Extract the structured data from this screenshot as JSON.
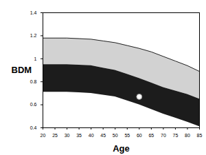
{
  "chart_data": {
    "type": "area",
    "x_label": "Age",
    "y_label": "BDM",
    "x": [
      20,
      25,
      30,
      35,
      40,
      45,
      50,
      55,
      60,
      65,
      70,
      75,
      80,
      85
    ],
    "bands": [
      {
        "color": "#d2d2d2",
        "upper": [
          1.18,
          1.18,
          1.18,
          1.175,
          1.17,
          1.155,
          1.14,
          1.115,
          1.09,
          1.06,
          1.02,
          0.98,
          0.94,
          0.89
        ],
        "lower": [
          0.95,
          0.95,
          0.95,
          0.945,
          0.94,
          0.92,
          0.9,
          0.865,
          0.83,
          0.79,
          0.75,
          0.72,
          0.69,
          0.65
        ]
      },
      {
        "color": "#1c1c1c",
        "upper": [
          0.95,
          0.95,
          0.95,
          0.945,
          0.94,
          0.92,
          0.9,
          0.865,
          0.83,
          0.79,
          0.75,
          0.72,
          0.69,
          0.65
        ],
        "lower": [
          0.71,
          0.71,
          0.71,
          0.705,
          0.7,
          0.685,
          0.67,
          0.635,
          0.6,
          0.56,
          0.52,
          0.485,
          0.45,
          0.41
        ]
      }
    ],
    "points": [
      {
        "x": 60,
        "y": 0.67,
        "color": "#ffffff"
      }
    ],
    "xlim": [
      20,
      85
    ],
    "xticks": [
      20,
      25,
      30,
      35,
      40,
      45,
      50,
      55,
      60,
      65,
      70,
      75,
      80,
      85
    ],
    "ylim": [
      0.4,
      1.4
    ],
    "yticks": [
      0.4,
      0.6,
      0.8,
      1,
      1.2,
      1.4
    ],
    "grid": false
  }
}
